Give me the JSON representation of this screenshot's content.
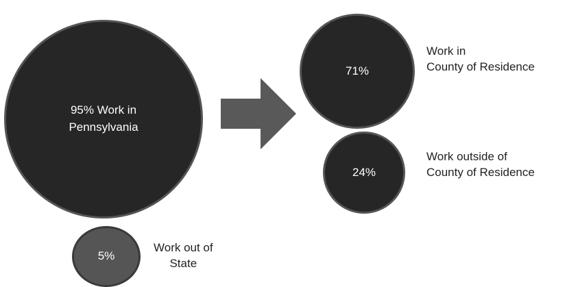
{
  "pa_circle": {
    "text_line1": "95% Work in",
    "text_line2": "Pennsylvania",
    "color": "#262626"
  },
  "county_circle": {
    "text": "71%",
    "label_line1": "Work in",
    "label_line2": "County of Residence",
    "color": "#262626"
  },
  "outside_circle": {
    "text": "24%",
    "label_line1": "Work outside of",
    "label_line2": "County of Residence",
    "color": "#262626"
  },
  "outstate_circle": {
    "text": "5%",
    "label_line1": "Work out of",
    "label_line2": "State",
    "color": "#555555"
  },
  "arrow": {
    "icon": "right-arrow-icon",
    "color": "#595959"
  }
}
